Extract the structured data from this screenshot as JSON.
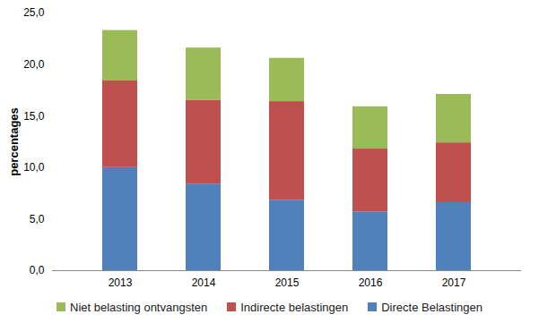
{
  "chart_data": {
    "type": "bar",
    "stacked": true,
    "ylabel": "percentages",
    "categories": [
      "2013",
      "2014",
      "2015",
      "2016",
      "2017"
    ],
    "series": [
      {
        "name": "Directe Belastingen",
        "color": "#4f81bd",
        "values": [
          10.0,
          8.4,
          6.8,
          5.7,
          6.6
        ]
      },
      {
        "name": "Indirecte belastingen",
        "color": "#c0504d",
        "values": [
          8.4,
          8.1,
          9.6,
          6.1,
          5.8
        ]
      },
      {
        "name": "Niet belasting ontvangsten",
        "color": "#9bbb59",
        "values": [
          4.9,
          5.1,
          4.2,
          4.1,
          4.7
        ]
      }
    ],
    "ylim": [
      0,
      25
    ],
    "yticks": [
      {
        "value": 0,
        "label": "0,0"
      },
      {
        "value": 5,
        "label": "5,0"
      },
      {
        "value": 10,
        "label": "10,0"
      },
      {
        "value": 15,
        "label": "15,0"
      },
      {
        "value": 20,
        "label": "20,0"
      },
      {
        "value": 25,
        "label": "25,0"
      }
    ],
    "grid": false,
    "legend": "bottom"
  }
}
